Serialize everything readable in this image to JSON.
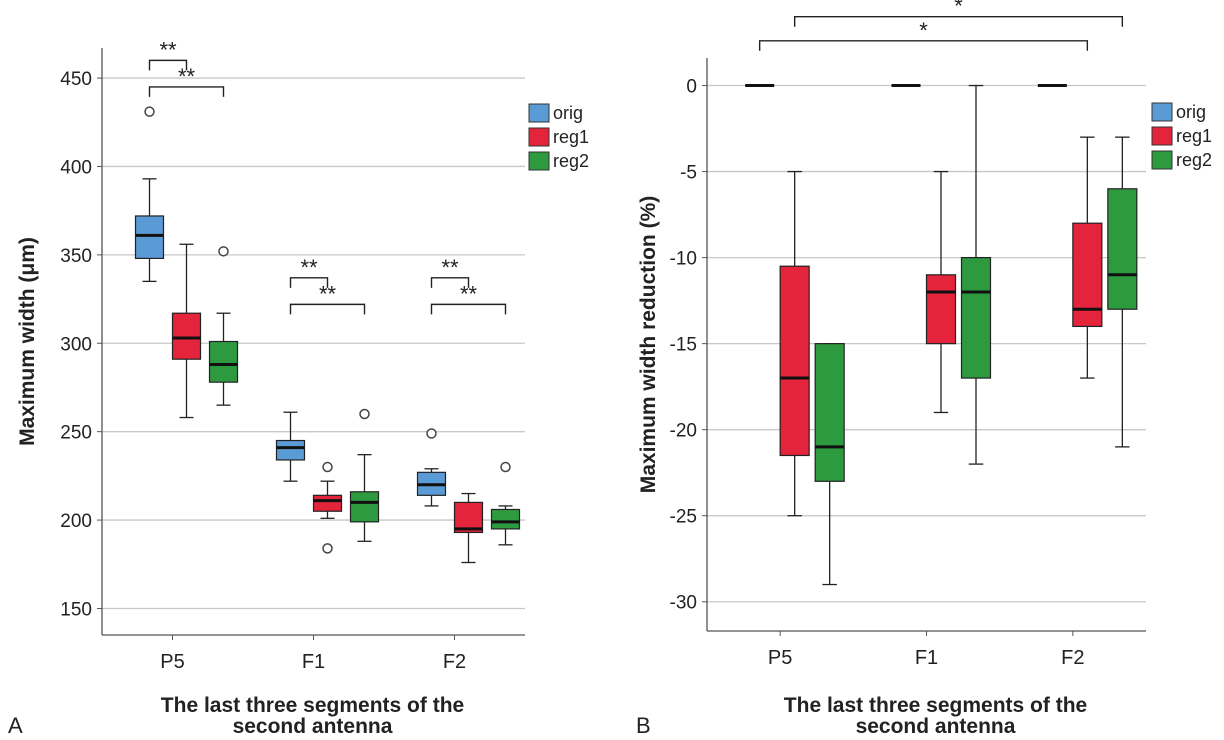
{
  "chart_data": [
    {
      "type": "box",
      "panel_label": "A",
      "ylabel": "Maximum width (μm)",
      "xlabel_lines": [
        "The last three segments of the",
        "second antenna"
      ],
      "categories": [
        "P5",
        "F1",
        "F2"
      ],
      "ylim": [
        135,
        467
      ],
      "yticks": [
        150,
        200,
        250,
        300,
        350,
        400,
        450
      ],
      "grid": true,
      "legend_position": "top-right",
      "series": [
        {
          "name": "orig",
          "color": "#5b9bd5",
          "boxes": [
            {
              "whislo": 335,
              "q1": 348,
              "med": 361,
              "q3": 372,
              "whishi": 393,
              "fliers": [
                431
              ]
            },
            {
              "whislo": 222,
              "q1": 234,
              "med": 241,
              "q3": 245,
              "whishi": 261,
              "fliers": []
            },
            {
              "whislo": 208,
              "q1": 214,
              "med": 220,
              "q3": 227,
              "whishi": 229,
              "fliers": [
                249
              ]
            }
          ]
        },
        {
          "name": "reg1",
          "color": "#e3243a",
          "boxes": [
            {
              "whislo": 258,
              "q1": 291,
              "med": 303,
              "q3": 317,
              "whishi": 356,
              "fliers": []
            },
            {
              "whislo": 201,
              "q1": 205,
              "med": 211,
              "q3": 214,
              "whishi": 222,
              "fliers": [
                230,
                184
              ]
            },
            {
              "whislo": 176,
              "q1": 193,
              "med": 195,
              "q3": 210,
              "whishi": 215,
              "fliers": []
            }
          ]
        },
        {
          "name": "reg2",
          "color": "#2e9a3f",
          "boxes": [
            {
              "whislo": 265,
              "q1": 278,
              "med": 288,
              "q3": 301,
              "whishi": 317,
              "fliers": [
                352
              ]
            },
            {
              "whislo": 188,
              "q1": 199,
              "med": 210,
              "q3": 216,
              "whishi": 237,
              "fliers": [
                260
              ]
            },
            {
              "whislo": 186,
              "q1": 195,
              "med": 199,
              "q3": 206,
              "whishi": 208,
              "fliers": [
                230
              ]
            }
          ]
        }
      ],
      "significance": [
        {
          "category": 0,
          "from": 0,
          "to": 1,
          "y": 460,
          "label": "**"
        },
        {
          "category": 0,
          "from": 0,
          "to": 2,
          "y": 445,
          "label": "**"
        },
        {
          "category": 1,
          "from": 0,
          "to": 1,
          "y": 337,
          "label": "**"
        },
        {
          "category": 1,
          "from": 0,
          "to": 2,
          "y": 322,
          "label": "**"
        },
        {
          "category": 2,
          "from": 0,
          "to": 1,
          "y": 337,
          "label": "**"
        },
        {
          "category": 2,
          "from": 0,
          "to": 2,
          "y": 322,
          "label": "**"
        }
      ]
    },
    {
      "type": "box",
      "panel_label": "B",
      "ylabel": "Maximum width reduction (%)",
      "xlabel_lines": [
        "The last three segments of the",
        "second antenna"
      ],
      "categories": [
        "P5",
        "F1",
        "F2"
      ],
      "ylim": [
        -31.7,
        1.6
      ],
      "yticks": [
        0,
        -5,
        -10,
        -15,
        -20,
        -25,
        -30
      ],
      "grid": true,
      "legend_position": "top-right",
      "series": [
        {
          "name": "orig",
          "color": "#5b9bd5",
          "boxes": [
            {
              "whislo": 0,
              "q1": 0,
              "med": 0,
              "q3": 0,
              "whishi": 0,
              "fliers": []
            },
            {
              "whislo": 0,
              "q1": 0,
              "med": 0,
              "q3": 0,
              "whishi": 0,
              "fliers": []
            },
            {
              "whislo": 0,
              "q1": 0,
              "med": 0,
              "q3": 0,
              "whishi": 0,
              "fliers": []
            }
          ]
        },
        {
          "name": "reg1",
          "color": "#e3243a",
          "boxes": [
            {
              "whislo": -25,
              "q1": -21.5,
              "med": -17,
              "q3": -10.5,
              "whishi": -5,
              "fliers": []
            },
            {
              "whislo": -19,
              "q1": -15,
              "med": -12,
              "q3": -11,
              "whishi": -5,
              "fliers": []
            },
            {
              "whislo": -17,
              "q1": -14,
              "med": -13,
              "q3": -8,
              "whishi": -3,
              "fliers": []
            }
          ]
        },
        {
          "name": "reg2",
          "color": "#2e9a3f",
          "boxes": [
            {
              "whislo": -29,
              "q1": -23,
              "med": -21,
              "q3": -15,
              "whishi": -15,
              "fliers": []
            },
            {
              "whislo": -22,
              "q1": -17,
              "med": -12,
              "q3": -10,
              "whishi": 0,
              "fliers": []
            },
            {
              "whislo": -21,
              "q1": -13,
              "med": -11,
              "q3": -6,
              "whishi": -3,
              "fliers": []
            }
          ]
        }
      ],
      "significance_span": [
        {
          "from_category": 0,
          "from_series": 0,
          "to_category": 2,
          "to_series": 1,
          "y": 2.6,
          "label": "*"
        },
        {
          "from_category": 0,
          "from_series": 1,
          "to_category": 2,
          "to_series": 2,
          "y": 4.0,
          "label": "*"
        }
      ]
    }
  ]
}
